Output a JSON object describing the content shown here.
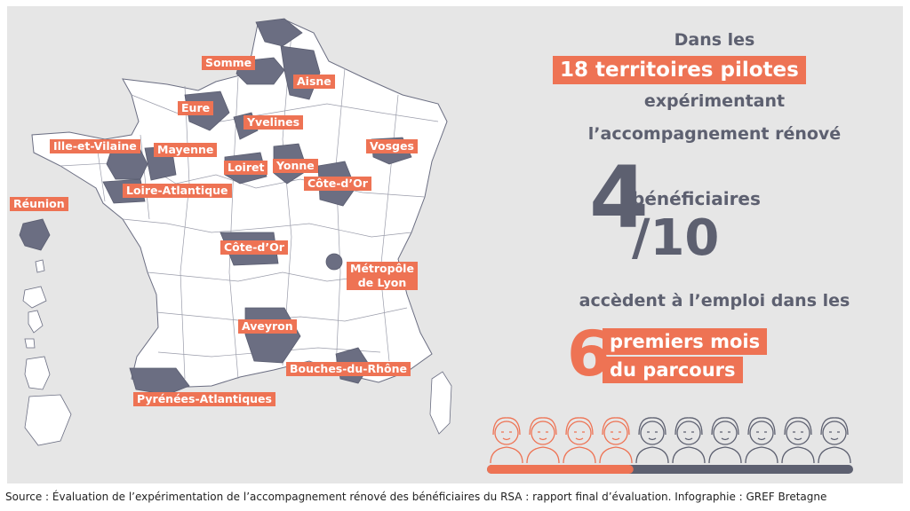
{
  "colors": {
    "background": "#e6e6e6",
    "accent": "#ee7354",
    "dark": "#5d6070",
    "map_fill": "#ffffff",
    "pilot_fill": "#6b6e82"
  },
  "map": {
    "labels": {
      "somme": "Somme",
      "aisne": "Aisne",
      "eure": "Eure",
      "yvelines": "Yvelines",
      "ille_et_vilaine": "Ille-et-Vilaine",
      "mayenne": "Mayenne",
      "vosges": "Vosges",
      "loiret": "Loiret",
      "yonne": "Yonne",
      "cote_dor_east": "Côte-d’Or",
      "loire_atlantique": "Loire-Atlantique",
      "reunion": "Réunion",
      "cote_dor_center": "Côte-d’Or",
      "metropole_lyon_1": "Métropôle",
      "metropole_lyon_2": "de Lyon",
      "aveyron": "Aveyron",
      "bouches_du_rhone": "Bouches-du-Rhône",
      "pyrenees_atlantiques": "Pyrénées-Atlantiques"
    }
  },
  "stats": {
    "line1": "Dans les",
    "highlight_territories": "18 territoires pilotes",
    "line3": "expérimentant",
    "line4": "l’accompagnement rénové",
    "big_number": "4",
    "beneficiaires": "bénéficiaires",
    "denominator": "/10",
    "line_emploi": "accèdent à l’emploi dans les",
    "big_six": "6",
    "highlight_mois_1": "premiers mois",
    "highlight_mois_2": "du parcours",
    "ratio_employed": 4,
    "ratio_total": 10
  },
  "source": "Source : Évaluation de l’expérimentation de l’accompagnement rénové des bénéficiaires du RSA : rapport final d’évaluation. Infographie : GREF Bretagne"
}
